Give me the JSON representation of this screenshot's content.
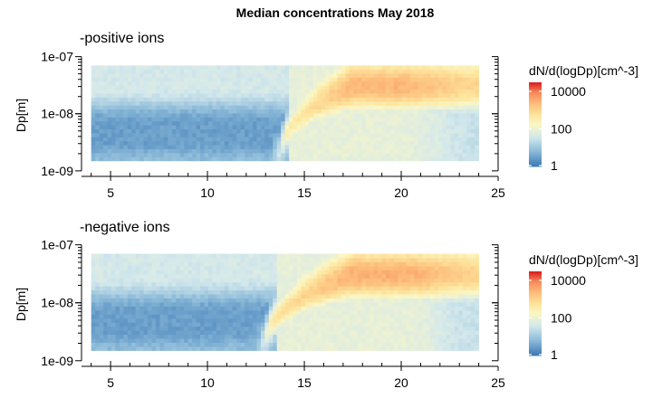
{
  "title": "Median concentrations May 2018",
  "colors": {
    "low": "#3f7fba",
    "mid": "#fbf6c2",
    "high": "#d7191c",
    "axis": "#000000"
  },
  "chart_data": [
    {
      "type": "heatmap",
      "subtitle": "-positive ions",
      "xlabel": "",
      "ylabel": "Dp[m]",
      "x_range": [
        4,
        24
      ],
      "xlim": [
        3.5,
        25
      ],
      "y_range": [
        1.5e-09,
        7e-08
      ],
      "ylim": [
        8e-10,
        1.1e-07
      ],
      "y_scale": "log",
      "x_ticks": [
        5,
        10,
        15,
        20,
        25
      ],
      "y_ticks": [
        {
          "value": 1e-09,
          "label": "1e-09"
        },
        {
          "value": 1e-08,
          "label": "1e-08"
        },
        {
          "value": 1e-07,
          "label": "1e-07"
        }
      ],
      "grid": false,
      "legend": {
        "title": "dN/d(logDp)[cm^-3]",
        "placement": "right",
        "scale": "log",
        "range": [
          1,
          30000
        ],
        "ticks": [
          {
            "value": 1,
            "label": "1"
          },
          {
            "value": 100,
            "label": "100"
          },
          {
            "value": 10000,
            "label": "10000"
          }
        ]
      },
      "values_description": "",
      "pattern": {
        "background_low_size_level": 3,
        "large_size_level": 40,
        "growth_start_hour": 13.8,
        "growth_start_level": 250,
        "growth_end_hour": 17.5,
        "growth_end_level": 2500
      }
    },
    {
      "type": "heatmap",
      "subtitle": "-negative ions",
      "xlabel": "",
      "ylabel": "Dp[m]",
      "x_range": [
        4,
        24
      ],
      "xlim": [
        3.5,
        25
      ],
      "y_range": [
        1.5e-09,
        7e-08
      ],
      "ylim": [
        8e-10,
        1.1e-07
      ],
      "y_scale": "log",
      "x_ticks": [
        5,
        10,
        15,
        20,
        25
      ],
      "y_ticks": [
        {
          "value": 1e-09,
          "label": "1e-09"
        },
        {
          "value": 1e-08,
          "label": "1e-08"
        },
        {
          "value": 1e-07,
          "label": "1e-07"
        }
      ],
      "grid": false,
      "legend": {
        "title": "dN/d(logDp)[cm^-3]",
        "placement": "right",
        "scale": "log",
        "range": [
          1,
          30000
        ],
        "ticks": [
          {
            "value": 1,
            "label": "1"
          },
          {
            "value": 100,
            "label": "100"
          },
          {
            "value": 10000,
            "label": "10000"
          }
        ]
      },
      "pattern": {
        "background_low_size_level": 3,
        "large_size_level": 40,
        "growth_start_hour": 13.0,
        "growth_start_level": 400,
        "growth_end_hour": 17.5,
        "growth_end_level": 3000
      }
    }
  ]
}
